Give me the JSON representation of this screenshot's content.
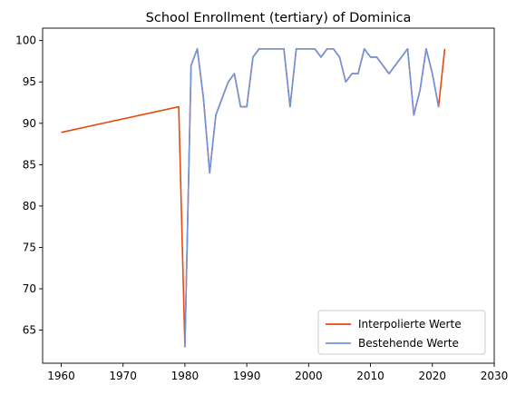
{
  "chart_data": {
    "type": "line",
    "title": "School Enrollment (tertiary) of Dominica",
    "xlabel": "",
    "ylabel": "",
    "xlim": [
      1957,
      2030
    ],
    "ylim": [
      61.0,
      101.5
    ],
    "xticks": [
      1960,
      1970,
      1980,
      1990,
      2000,
      2010,
      2020,
      2030
    ],
    "yticks": [
      65,
      70,
      75,
      80,
      85,
      90,
      95,
      100
    ],
    "grid": false,
    "legend_position": "lower-right",
    "series": [
      {
        "name": "Interpolierte Werte",
        "color": "#e8490f",
        "x": [
          1960,
          1979,
          1980,
          1981,
          1982,
          1983,
          1984,
          1985,
          1986,
          1987,
          1988,
          1989,
          1990,
          1991,
          1992,
          1993,
          1994,
          1995,
          1996,
          1997,
          1998,
          1999,
          2000,
          2001,
          2002,
          2003,
          2004,
          2005,
          2006,
          2007,
          2008,
          2009,
          2010,
          2011,
          2012,
          2013,
          2014,
          2015,
          2016,
          2017,
          2018,
          2019,
          2020,
          2021,
          2022
        ],
        "y": [
          88.9,
          92.0,
          63.0,
          97.0,
          99.0,
          93.0,
          84.0,
          91.0,
          93.0,
          95.0,
          96.0,
          92.0,
          92.0,
          98.0,
          99.0,
          99.0,
          99.0,
          99.0,
          99.0,
          92.0,
          99.0,
          99.0,
          99.0,
          99.0,
          98.0,
          99.0,
          99.0,
          98.0,
          95.0,
          96.0,
          96.0,
          99.0,
          98.0,
          98.0,
          97.0,
          96.0,
          97.0,
          98.0,
          99.0,
          91.0,
          94.0,
          99.0,
          96.0,
          92.0,
          99.0
        ]
      },
      {
        "name": "Bestehende Werte",
        "color": "#7095e0",
        "x": [
          1980,
          1981,
          1982,
          1983,
          1984,
          1985,
          1986,
          1987,
          1988,
          1989,
          1990,
          1991,
          1992,
          1993,
          1994,
          1995,
          1996,
          1997,
          1998,
          1999,
          2000,
          2001,
          2002,
          2003,
          2004,
          2005,
          2006,
          2007,
          2008,
          2009,
          2010,
          2011,
          2012,
          2013,
          2014,
          2015,
          2016,
          2017,
          2018,
          2019,
          2020,
          2021
        ],
        "y": [
          63.0,
          97.0,
          99.0,
          93.0,
          84.0,
          91.0,
          93.0,
          95.0,
          96.0,
          92.0,
          92.0,
          98.0,
          99.0,
          99.0,
          99.0,
          99.0,
          99.0,
          92.0,
          99.0,
          99.0,
          99.0,
          99.0,
          98.0,
          99.0,
          99.0,
          98.0,
          95.0,
          96.0,
          96.0,
          99.0,
          98.0,
          98.0,
          97.0,
          96.0,
          97.0,
          98.0,
          99.0,
          91.0,
          94.0,
          99.0,
          96.0,
          92.0
        ]
      }
    ]
  }
}
